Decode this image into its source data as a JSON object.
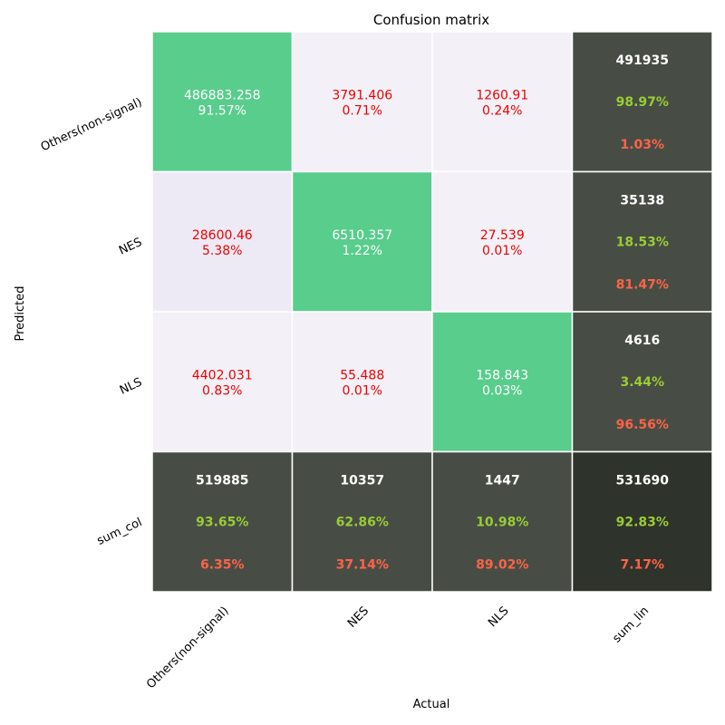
{
  "chart_data": {
    "type": "heatmap",
    "title": "Confusion matrix",
    "xlabel": "Actual",
    "ylabel": "Predicted",
    "x_categories": [
      "Others(non-signal)",
      "NES",
      "NLS",
      "sum_lin"
    ],
    "y_categories": [
      "Others(non-signal)",
      "NES",
      "NLS",
      "sum_col"
    ],
    "cells": [
      [
        {
          "value": "486883.258",
          "percent": "91.57%",
          "kind": "diag"
        },
        {
          "value": "3791.406",
          "percent": "0.71%",
          "kind": "off"
        },
        {
          "value": "1260.91",
          "percent": "0.24%",
          "kind": "off"
        },
        {
          "value": "491935",
          "correct": "98.97%",
          "error": "1.03%",
          "kind": "sum"
        }
      ],
      [
        {
          "value": "28600.46",
          "percent": "5.38%",
          "kind": "off_strong"
        },
        {
          "value": "6510.357",
          "percent": "1.22%",
          "kind": "diag"
        },
        {
          "value": "27.539",
          "percent": "0.01%",
          "kind": "off"
        },
        {
          "value": "35138",
          "correct": "18.53%",
          "error": "81.47%",
          "kind": "sum"
        }
      ],
      [
        {
          "value": "4402.031",
          "percent": "0.83%",
          "kind": "off"
        },
        {
          "value": "55.488",
          "percent": "0.01%",
          "kind": "off"
        },
        {
          "value": "158.843",
          "percent": "0.03%",
          "kind": "diag"
        },
        {
          "value": "4616",
          "correct": "3.44%",
          "error": "96.56%",
          "kind": "sum"
        }
      ],
      [
        {
          "value": "519885",
          "correct": "93.65%",
          "error": "6.35%",
          "kind": "sum"
        },
        {
          "value": "10357",
          "correct": "62.86%",
          "error": "37.14%",
          "kind": "sum"
        },
        {
          "value": "1447",
          "correct": "10.98%",
          "error": "89.02%",
          "kind": "sum"
        },
        {
          "value": "531690",
          "correct": "92.83%",
          "error": "7.17%",
          "kind": "total"
        }
      ]
    ],
    "colors": {
      "diag": "#59cd8c",
      "off": "#f3f1f7",
      "off_strong": "#eeeaf5",
      "sum": "#474d45",
      "total": "#2e332b",
      "diag_text": "#ffffff",
      "off_text": "#ee0000",
      "sum_value_text": "#ffffff",
      "sum_correct_text": "#9acd32",
      "sum_error_text": "#ff6347"
    }
  }
}
